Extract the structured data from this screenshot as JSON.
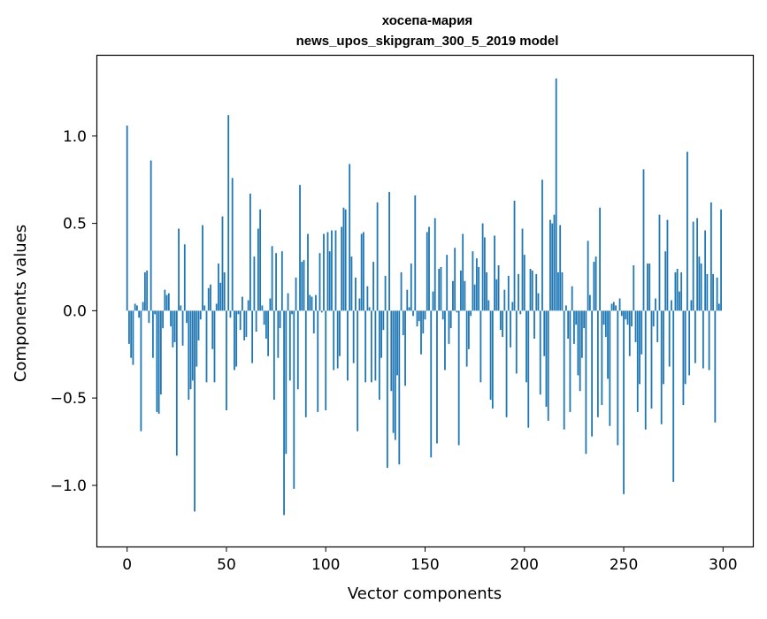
{
  "chart_data": {
    "type": "bar",
    "title": "хосепа-мария\nnews_upos_skipgram_300_5_2019 model",
    "title_lines": [
      "хосепа-мария",
      "news_upos_skipgram_300_5_2019 model"
    ],
    "xlabel": "Vector components",
    "ylabel": "Components values",
    "xlim": [
      -15,
      315
    ],
    "ylim": [
      -1.35,
      1.46
    ],
    "x_ticks": [
      0,
      50,
      100,
      150,
      200,
      250,
      300
    ],
    "y_ticks": [
      -1.0,
      -0.5,
      0.0,
      0.5,
      1.0
    ],
    "x_tick_labels": [
      "0",
      "50",
      "100",
      "150",
      "200",
      "250",
      "300"
    ],
    "y_tick_labels": [
      "−1.0",
      "−0.5",
      "0.0",
      "0.5",
      "1.0"
    ],
    "grid": false,
    "bar_color": "#1f77b4",
    "series": [
      {
        "values": [
          1.06,
          -0.19,
          -0.27,
          -0.31,
          0.04,
          0.03,
          -0.04,
          -0.69,
          0.05,
          0.22,
          0.23,
          -0.07,
          0.86,
          -0.27,
          -0.02,
          -0.58,
          -0.59,
          -0.48,
          -0.1,
          0.12,
          0.09,
          0.1,
          -0.09,
          -0.21,
          -0.18,
          -0.83,
          0.47,
          0.03,
          -0.2,
          0.38,
          -0.07,
          -0.51,
          -0.45,
          -0.4,
          -1.15,
          -0.32,
          -0.17,
          -0.05,
          0.49,
          0.03,
          -0.41,
          0.13,
          0.15,
          -0.22,
          -0.41,
          0.04,
          0.27,
          0.16,
          0.54,
          0.22,
          -0.57,
          1.12,
          -0.04,
          0.76,
          -0.34,
          -0.32,
          -0.02,
          -0.11,
          0.08,
          -0.17,
          -0.15,
          0.06,
          0.67,
          -0.3,
          0.31,
          -0.12,
          0.47,
          0.58,
          0.03,
          -0.08,
          -0.16,
          -0.26,
          0.07,
          0.37,
          -0.51,
          0.33,
          -0.27,
          -0.1,
          0.34,
          -1.17,
          -0.82,
          0.1,
          -0.4,
          -0.02,
          -1.02,
          0.19,
          -0.45,
          0.72,
          0.28,
          0.29,
          -0.61,
          0.44,
          0.09,
          0.08,
          -0.13,
          0.09,
          -0.58,
          0.33,
          -0.01,
          0.44,
          -0.57,
          0.45,
          0.34,
          0.46,
          -0.34,
          0.46,
          -0.33,
          -0.26,
          0.48,
          0.59,
          0.58,
          -0.4,
          0.84,
          0.31,
          -0.3,
          0.19,
          -0.69,
          0.07,
          0.44,
          0.45,
          -0.41,
          0.14,
          0.02,
          -0.41,
          0.28,
          -0.4,
          0.62,
          -0.51,
          -0.27,
          -0.11,
          0.2,
          -0.9,
          0.68,
          -0.46,
          -0.7,
          -0.74,
          -0.37,
          -0.88,
          0.22,
          -0.14,
          -0.43,
          0.12,
          0.02,
          0.27,
          -0.03,
          0.66,
          -0.09,
          -0.06,
          -0.25,
          -0.13,
          -0.05,
          0.45,
          0.48,
          -0.84,
          0.11,
          0.53,
          -0.76,
          0.24,
          0.25,
          -0.05,
          -0.34,
          0.32,
          -0.19,
          -0.1,
          0.17,
          0.36,
          -0.01,
          -0.77,
          0.23,
          0.44,
          0.17,
          -0.32,
          -0.22,
          -0.03,
          0.34,
          0.15,
          0.3,
          0.25,
          -0.41,
          0.5,
          0.42,
          0.22,
          0.06,
          -0.51,
          -0.56,
          0.43,
          0.18,
          0.26,
          -0.11,
          -0.15,
          0.12,
          -0.61,
          0.2,
          -0.21,
          0.05,
          0.63,
          -0.36,
          0.21,
          -0.02,
          0.47,
          0.32,
          -0.41,
          -0.67,
          0.24,
          0.23,
          -0.16,
          0.21,
          0.1,
          -0.48,
          0.75,
          -0.26,
          -0.55,
          -0.63,
          0.52,
          0.5,
          0.55,
          1.33,
          0.22,
          0.49,
          0.22,
          -0.68,
          0.03,
          -0.16,
          -0.58,
          0.14,
          -0.19,
          -0.08,
          -0.37,
          -0.46,
          -0.27,
          -0.1,
          -0.82,
          0.4,
          0.09,
          -0.72,
          0.28,
          0.31,
          -0.61,
          0.59,
          -0.54,
          -0.08,
          -0.15,
          -0.39,
          -0.66,
          0.04,
          0.05,
          0.03,
          -0.77,
          0.07,
          -0.03,
          -1.05,
          -0.05,
          -0.08,
          -0.26,
          -0.09,
          0.26,
          -0.18,
          -0.58,
          -0.42,
          -0.25,
          0.81,
          -0.68,
          0.27,
          0.27,
          -0.56,
          -0.09,
          0.07,
          -0.18,
          0.55,
          -0.65,
          -0.42,
          0.34,
          0.52,
          -0.32,
          0.06,
          -0.98,
          0.22,
          0.24,
          0.11,
          0.22,
          -0.54,
          -0.42,
          0.91,
          -0.37,
          0.06,
          0.51,
          -0.3,
          0.53,
          0.31,
          0.27,
          -0.33,
          0.46,
          0.21,
          -0.34,
          0.62,
          0.21,
          -0.64,
          0.19,
          0.04,
          0.58
        ]
      }
    ]
  }
}
